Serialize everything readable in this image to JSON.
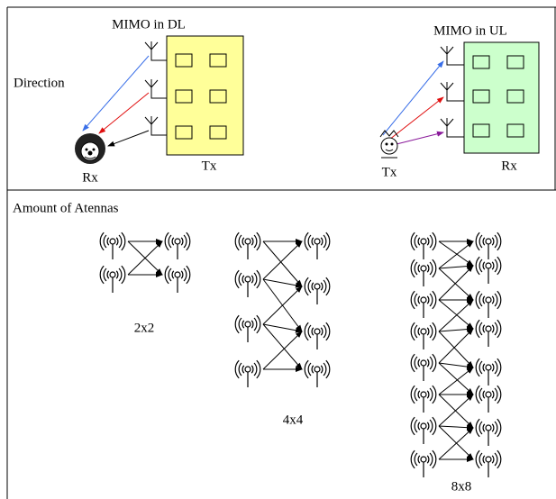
{
  "top": {
    "dl": {
      "title": "MIMO in DL",
      "rx": "Rx",
      "tx": "Tx"
    },
    "direction": "Direction",
    "ul": {
      "title": "MIMO in UL",
      "tx": "Tx",
      "rx": "Rx"
    }
  },
  "bottom": {
    "title": "Amount of Atennas",
    "configs": [
      "2x2",
      "4x4",
      "8x8"
    ]
  }
}
